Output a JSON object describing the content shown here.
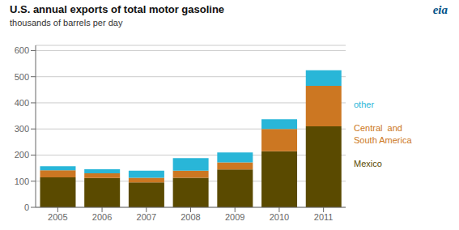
{
  "chart_data": {
    "type": "bar",
    "title": "U.S. annual exports  of total  motor gasoline",
    "subtitle": "thousands of barrels per day",
    "categories": [
      "2005",
      "2006",
      "2007",
      "2008",
      "2009",
      "2010",
      "2011"
    ],
    "series": [
      {
        "name": "Mexico",
        "color": "#5a4a00",
        "values": [
          115,
          112,
          95,
          113,
          145,
          215,
          310
        ]
      },
      {
        "name": "Central  and\nSouth America",
        "color": "#cc7722",
        "values": [
          27,
          18,
          18,
          27,
          27,
          85,
          155
        ]
      },
      {
        "name": "other",
        "color": "#29b6d8",
        "values": [
          15,
          16,
          27,
          48,
          38,
          37,
          60
        ]
      }
    ],
    "stacked": true,
    "ylim": [
      0,
      620
    ],
    "yticks": [
      0,
      100,
      200,
      300,
      400,
      500,
      600
    ],
    "grid": true,
    "legend": "right",
    "annotations": [
      "eia"
    ]
  }
}
